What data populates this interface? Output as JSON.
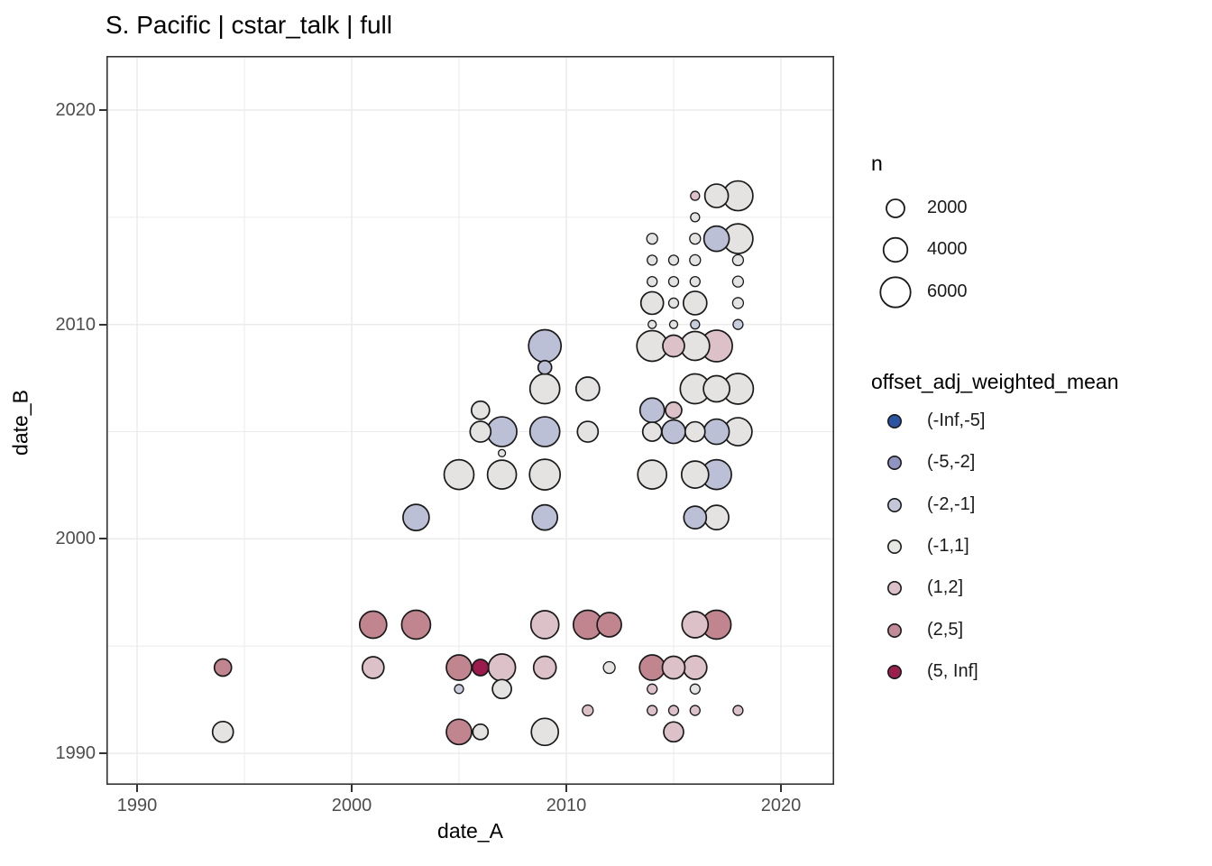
{
  "title": "S. Pacific | cstar_talk | full",
  "x_axis": {
    "label": "date_A",
    "ticks": [
      "1990",
      "2000",
      "2010",
      "2020"
    ],
    "minor_ticks": [
      1995,
      2005,
      2015
    ]
  },
  "y_axis": {
    "label": "date_B",
    "ticks": [
      "1990",
      "2000",
      "2010",
      "2020"
    ],
    "minor_ticks": [
      1995,
      2005,
      2015
    ]
  },
  "size_legend": {
    "title": "n",
    "items": [
      {
        "label": "2000",
        "r": 10
      },
      {
        "label": "4000",
        "r": 13.3
      },
      {
        "label": "6000",
        "r": 16.7
      }
    ]
  },
  "color_legend": {
    "title": "offset_adj_weighted_mean",
    "items": [
      {
        "label": "(-Inf,-5]",
        "color": "#2b55a3"
      },
      {
        "label": "(-5,-2]",
        "color": "#8f94c0"
      },
      {
        "label": "(-2,-1]",
        "color": "#c4c6d9"
      },
      {
        "label": "(-1,1]",
        "color": "#e8e7e4"
      },
      {
        "label": "(1,2]",
        "color": "#dcc0c7"
      },
      {
        "label": "(2,5]",
        "color": "#c28b98"
      },
      {
        "label": "(5, Inf]",
        "color": "#99204d"
      }
    ]
  },
  "colors": {
    "grid": "#ebebeb",
    "panel_border": "#333333",
    "panel_bg": "#ffffff",
    "tick": "#333333",
    "tick_label": "#4d4d4d",
    "point_stroke": "#1a1a1a"
  },
  "chart_data": {
    "type": "scatter",
    "title": "S. Pacific | cstar_talk | full",
    "xlabel": "date_A",
    "ylabel": "date_B",
    "x_ticks": [
      1990,
      2000,
      2010,
      2020
    ],
    "y_ticks": [
      1990,
      2000,
      2010,
      2020
    ],
    "x_range": [
      1988.6,
      2022.5
    ],
    "y_range": [
      1988.5,
      2022.5
    ],
    "grid": "major+minor, light gray on white, dark panel border",
    "legend_position": "right",
    "size_variable": "n",
    "size_values": [
      2000,
      4000,
      6000
    ],
    "color_variable": "offset_adj_weighted_mean",
    "color_bins": [
      "(-Inf,-5]",
      "(-5,-2]",
      "(-2,-1]",
      "(-1,1]",
      "(1,2]",
      "(2,5]",
      "(5, Inf]"
    ],
    "plot_fill_by_bin": {
      "(-Inf,-5]": "#2b55a3",
      "(-5,-2]": "#bcc0d6",
      "(-2,-1]": "#c9ccdd",
      "(-1,1]": "#e4e3e2",
      "(1,2]": "#dcc1c9",
      "(2,5]": "#c1858f",
      "(5, Inf]": "#9c1b4d"
    },
    "points": [
      {
        "x": 1994,
        "y": 1994,
        "bin": "(2,5]",
        "r": 9.5
      },
      {
        "x": 1994,
        "y": 1991,
        "bin": "(-1,1]",
        "r": 11.5
      },
      {
        "x": 2001,
        "y": 1996,
        "bin": "(2,5]",
        "r": 15
      },
      {
        "x": 2003,
        "y": 1996,
        "bin": "(2,5]",
        "r": 16
      },
      {
        "x": 2001,
        "y": 1994,
        "bin": "(1,2]",
        "r": 12
      },
      {
        "x": 2005,
        "y": 1994,
        "bin": "(2,5]",
        "r": 14
      },
      {
        "x": 2006,
        "y": 1994,
        "bin": "(5, Inf]",
        "r": 9
      },
      {
        "x": 2007,
        "y": 1994,
        "bin": "(1,2]",
        "r": 15
      },
      {
        "x": 2009,
        "y": 1994,
        "bin": "(1,2]",
        "r": 12.5
      },
      {
        "x": 2012,
        "y": 1994,
        "bin": "(-1,1]",
        "r": 6.5
      },
      {
        "x": 2014,
        "y": 1994,
        "bin": "(2,5]",
        "r": 14
      },
      {
        "x": 2015,
        "y": 1994,
        "bin": "(1,2]",
        "r": 12.5
      },
      {
        "x": 2016,
        "y": 1994,
        "bin": "(1,2]",
        "r": 13
      },
      {
        "x": 2005,
        "y": 1993,
        "bin": "(-2,-1]",
        "r": 5
      },
      {
        "x": 2007,
        "y": 1993,
        "bin": "(-1,1]",
        "r": 10.5
      },
      {
        "x": 2014,
        "y": 1993,
        "bin": "(1,2]",
        "r": 5.5
      },
      {
        "x": 2016,
        "y": 1993,
        "bin": "(-1,1]",
        "r": 5.5
      },
      {
        "x": 2011,
        "y": 1992,
        "bin": "(1,2]",
        "r": 6
      },
      {
        "x": 2014,
        "y": 1992,
        "bin": "(1,2]",
        "r": 5.5
      },
      {
        "x": 2015,
        "y": 1992,
        "bin": "(1,2]",
        "r": 5.5
      },
      {
        "x": 2016,
        "y": 1992,
        "bin": "(1,2]",
        "r": 5.5
      },
      {
        "x": 2018,
        "y": 1992,
        "bin": "(1,2]",
        "r": 5.5
      },
      {
        "x": 2005,
        "y": 1991,
        "bin": "(2,5]",
        "r": 14
      },
      {
        "x": 2006,
        "y": 1991,
        "bin": "(-1,1]",
        "r": 8.5
      },
      {
        "x": 2009,
        "y": 1991,
        "bin": "(-1,1]",
        "r": 15
      },
      {
        "x": 2015,
        "y": 1991,
        "bin": "(1,2]",
        "r": 11
      },
      {
        "x": 2009,
        "y": 1996,
        "bin": "(1,2]",
        "r": 15.5
      },
      {
        "x": 2011,
        "y": 1996,
        "bin": "(2,5]",
        "r": 16
      },
      {
        "x": 2012,
        "y": 1996,
        "bin": "(2,5]",
        "r": 13.5
      },
      {
        "x": 2016,
        "y": 1996,
        "bin": "(1,2]",
        "r": 14.5
      },
      {
        "x": 2017,
        "y": 1996,
        "bin": "(2,5]",
        "r": 16
      },
      {
        "x": 2003,
        "y": 2001,
        "bin": "(-5,-2]",
        "r": 14.5
      },
      {
        "x": 2009,
        "y": 2001,
        "bin": "(-5,-2]",
        "r": 14
      },
      {
        "x": 2005,
        "y": 2003,
        "bin": "(-1,1]",
        "r": 16.5
      },
      {
        "x": 2007,
        "y": 2003,
        "bin": "(-1,1]",
        "r": 16
      },
      {
        "x": 2009,
        "y": 2003,
        "bin": "(-1,1]",
        "r": 17
      },
      {
        "x": 2007,
        "y": 2004,
        "bin": "(-1,1]",
        "r": 4
      },
      {
        "x": 2006,
        "y": 2005,
        "bin": "(-1,1]",
        "r": 11.5
      },
      {
        "x": 2007,
        "y": 2005,
        "bin": "(-5,-2]",
        "r": 16.5
      },
      {
        "x": 2009,
        "y": 2005,
        "bin": "(-5,-2]",
        "r": 16.5
      },
      {
        "x": 2011,
        "y": 2005,
        "bin": "(-1,1]",
        "r": 11.5
      },
      {
        "x": 2006,
        "y": 2006,
        "bin": "(-1,1]",
        "r": 10
      },
      {
        "x": 2009,
        "y": 2007,
        "bin": "(-1,1]",
        "r": 16.5
      },
      {
        "x": 2011,
        "y": 2007,
        "bin": "(-1,1]",
        "r": 13
      },
      {
        "x": 2009,
        "y": 2008,
        "bin": "(-5,-2]",
        "r": 7.5
      },
      {
        "x": 2009,
        "y": 2009,
        "bin": "(-5,-2]",
        "r": 18
      },
      {
        "x": 2016,
        "y": 2001,
        "bin": "(-5,-2]",
        "r": 12.5
      },
      {
        "x": 2017,
        "y": 2001,
        "bin": "(-1,1]",
        "r": 13.5
      },
      {
        "x": 2014,
        "y": 2003,
        "bin": "(-1,1]",
        "r": 16
      },
      {
        "x": 2016,
        "y": 2003,
        "bin": "(-1,1]",
        "r": 15
      },
      {
        "x": 2017,
        "y": 2003,
        "bin": "(-5,-2]",
        "r": 16.5
      },
      {
        "x": 2014,
        "y": 2005,
        "bin": "(-1,1]",
        "r": 10.5
      },
      {
        "x": 2015,
        "y": 2005,
        "bin": "(-5,-2]",
        "r": 13
      },
      {
        "x": 2016,
        "y": 2005,
        "bin": "(-1,1]",
        "r": 11
      },
      {
        "x": 2017,
        "y": 2005,
        "bin": "(-5,-2]",
        "r": 14
      },
      {
        "x": 2018,
        "y": 2005,
        "bin": "(-1,1]",
        "r": 15.5
      },
      {
        "x": 2014,
        "y": 2006,
        "bin": "(-5,-2]",
        "r": 13.5
      },
      {
        "x": 2015,
        "y": 2006,
        "bin": "(1,2]",
        "r": 9
      },
      {
        "x": 2016,
        "y": 2007,
        "bin": "(-1,1]",
        "r": 16.5
      },
      {
        "x": 2017,
        "y": 2007,
        "bin": "(-1,1]",
        "r": 14.5
      },
      {
        "x": 2018,
        "y": 2007,
        "bin": "(-1,1]",
        "r": 17
      },
      {
        "x": 2014,
        "y": 2009,
        "bin": "(-1,1]",
        "r": 17
      },
      {
        "x": 2015,
        "y": 2009,
        "bin": "(1,2]",
        "r": 12
      },
      {
        "x": 2016,
        "y": 2009,
        "bin": "(-1,1]",
        "r": 16
      },
      {
        "x": 2017,
        "y": 2009,
        "bin": "(1,2]",
        "r": 17.5
      },
      {
        "x": 2014,
        "y": 2010,
        "bin": "(-1,1]",
        "r": 4.5
      },
      {
        "x": 2015,
        "y": 2010,
        "bin": "(-1,1]",
        "r": 4.5
      },
      {
        "x": 2016,
        "y": 2010,
        "bin": "(-2,-1]",
        "r": 5
      },
      {
        "x": 2018,
        "y": 2010,
        "bin": "(-2,-1]",
        "r": 5.5
      },
      {
        "x": 2014,
        "y": 2011,
        "bin": "(-1,1]",
        "r": 12.5
      },
      {
        "x": 2015,
        "y": 2011,
        "bin": "(-1,1]",
        "r": 5.5
      },
      {
        "x": 2016,
        "y": 2011,
        "bin": "(-1,1]",
        "r": 13
      },
      {
        "x": 2018,
        "y": 2011,
        "bin": "(-1,1]",
        "r": 6
      },
      {
        "x": 2014,
        "y": 2012,
        "bin": "(-1,1]",
        "r": 5.5
      },
      {
        "x": 2015,
        "y": 2012,
        "bin": "(-1,1]",
        "r": 5.5
      },
      {
        "x": 2016,
        "y": 2012,
        "bin": "(-1,1]",
        "r": 5.5
      },
      {
        "x": 2018,
        "y": 2012,
        "bin": "(-1,1]",
        "r": 6
      },
      {
        "x": 2014,
        "y": 2013,
        "bin": "(-1,1]",
        "r": 5.5
      },
      {
        "x": 2015,
        "y": 2013,
        "bin": "(-1,1]",
        "r": 5.5
      },
      {
        "x": 2016,
        "y": 2013,
        "bin": "(-1,1]",
        "r": 6
      },
      {
        "x": 2018,
        "y": 2013,
        "bin": "(-1,1]",
        "r": 6
      },
      {
        "x": 2014,
        "y": 2014,
        "bin": "(-1,1]",
        "r": 6
      },
      {
        "x": 2016,
        "y": 2014,
        "bin": "(-1,1]",
        "r": 6
      },
      {
        "x": 2017,
        "y": 2014,
        "bin": "(-5,-2]",
        "r": 14
      },
      {
        "x": 2018,
        "y": 2014,
        "bin": "(-1,1]",
        "r": 16.5
      },
      {
        "x": 2016,
        "y": 2015,
        "bin": "(-1,1]",
        "r": 5
      },
      {
        "x": 2016,
        "y": 2016,
        "bin": "(1,2]",
        "r": 5
      },
      {
        "x": 2017,
        "y": 2016,
        "bin": "(-1,1]",
        "r": 13
      },
      {
        "x": 2018,
        "y": 2016,
        "bin": "(-1,1]",
        "r": 16.5
      }
    ]
  }
}
